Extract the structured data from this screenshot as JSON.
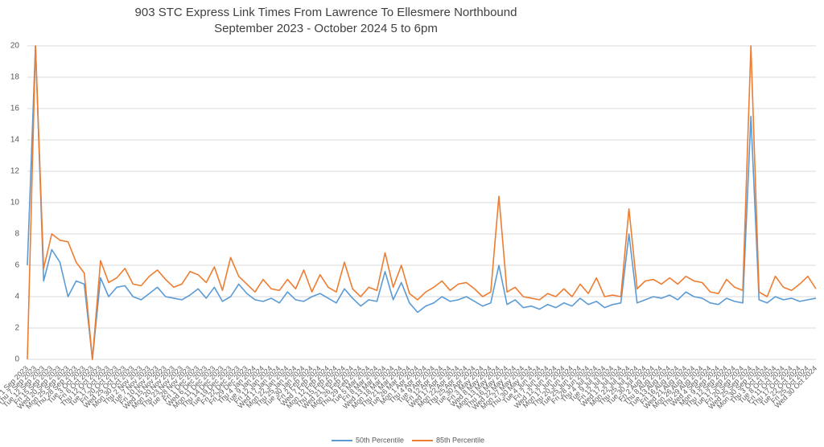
{
  "chart_data": {
    "type": "line",
    "title": "903 STC Express Link Times From Lawrence To Ellesmere Northbound",
    "subtitle": "September 2023 - October 2024 5 to 6pm",
    "categories": [
      "Fri 1 Sep 2023",
      "Thu 7 Sep 2023",
      "Tue 12 Sep 2023",
      "Fri 15 Sep 2023",
      "Wed 20 Sep 2023",
      "Mon 25 Sep 2023",
      "Thu 28 Sep 2023",
      "Tue 3 Oct 2023",
      "Fri 6 Oct 2023",
      "Thu 12 Oct 2023",
      "Tue 17 Oct 2023",
      "Fri 20 Oct 2023",
      "Wed 25 Oct 2023",
      "Mon 30 Oct 2023",
      "Thu 2 Nov 2023",
      "Tue 7 Nov 2023",
      "Fri 10 Nov 2023",
      "Wed 15 Nov 2023",
      "Mon 20 Nov 2023",
      "Thu 23 Nov 2023",
      "Tue 28 Nov 2023",
      "Fri 1 Dec 2023",
      "Wed 6 Dec 2023",
      "Mon 11 Dec 2023",
      "Thu 14 Dec 2023",
      "Tue 19 Dec 2023",
      "Fri 22 Dec 2023",
      "Fri 29 Dec 2023",
      "Thu 4 Jan 2024",
      "Tue 9 Jan 2024",
      "Fri 12 Jan 2024",
      "Wed 17 Jan 2024",
      "Mon 22 Jan 2024",
      "Thu 25 Jan 2024",
      "Tue 30 Jan 2024",
      "Fri 2 Feb 2024",
      "Wed 7 Feb 2024",
      "Mon 12 Feb 2024",
      "Thu 15 Feb 2024",
      "Wed 21 Feb 2024",
      "Mon 26 Feb 2024",
      "Thu 29 Feb 2024",
      "Tue 5 Mar 2024",
      "Fri 8 Mar 2024",
      "Wed 13 Mar 2024",
      "Mon 18 Mar 2024",
      "Thu 21 Mar 2024",
      "Tue 26 Mar 2024",
      "Mon 1 Apr 2024",
      "Thu 4 Apr 2024",
      "Tue 9 Apr 2024",
      "Fri 12 Apr 2024",
      "Wed 17 Apr 2024",
      "Mon 22 Apr 2024",
      "Thu 25 Apr 2024",
      "Tue 30 Apr 2024",
      "Fri 3 May 2024",
      "Wed 8 May 2024",
      "Mon 13 May 2024",
      "Thu 16 May 2024",
      "Wed 22 May 2024",
      "Mon 27 May 2024",
      "Thu 30 May 2024",
      "Tue 4 Jun 2024",
      "Fri 7 Jun 2024",
      "Wed 12 Jun 2024",
      "Mon 17 Jun 2024",
      "Thu 20 Jun 2024",
      "Tue 25 Jun 2024",
      "Fri 28 Jun 2024",
      "Thu 4 Jul 2024",
      "Tue 9 Jul 2024",
      "Fri 12 Jul 2024",
      "Wed 17 Jul 2024",
      "Mon 22 Jul 2024",
      "Thu 25 Jul 2024",
      "Tue 30 Jul 2024",
      "Fri 2 Aug 2024",
      "Thu 8 Aug 2024",
      "Tue 13 Aug 2024",
      "Fri 16 Aug 2024",
      "Wed 21 Aug 2024",
      "Mon 26 Aug 2024",
      "Thu 29 Aug 2024",
      "Wed 4 Sep 2024",
      "Mon 9 Sep 2024",
      "Thu 12 Sep 2024",
      "Tue 17 Sep 2024",
      "Fri 20 Sep 2024",
      "Wed 25 Sep 2024",
      "Mon 30 Sep 2024",
      "Thu 3 Oct 2024",
      "Tue 8 Oct 2024",
      "Fri 11 Oct 2024",
      "Thu 17 Oct 2024",
      "Tue 22 Oct 2024",
      "Fri 25 Oct 2024",
      "Wed 30 Oct 2024"
    ],
    "series": [
      {
        "name": "50th Percentile",
        "color": "#5b9bd5",
        "values": [
          6.0,
          20,
          5.0,
          7.0,
          6.2,
          4.0,
          5.0,
          4.8,
          0,
          5.2,
          4.0,
          4.6,
          4.7,
          4.0,
          3.8,
          4.2,
          4.6,
          4.0,
          3.9,
          3.8,
          4.1,
          4.5,
          3.9,
          4.6,
          3.7,
          4.0,
          4.8,
          4.2,
          3.8,
          3.7,
          3.9,
          3.6,
          4.3,
          3.8,
          3.7,
          4.0,
          4.2,
          3.9,
          3.6,
          4.5,
          3.9,
          3.4,
          3.8,
          3.7,
          5.6,
          3.8,
          4.9,
          3.6,
          3.0,
          3.4,
          3.6,
          4.0,
          3.7,
          3.8,
          4.0,
          3.7,
          3.4,
          3.6,
          6.0,
          3.5,
          3.8,
          3.3,
          3.4,
          3.2,
          3.5,
          3.3,
          3.6,
          3.4,
          3.9,
          3.5,
          3.7,
          3.3,
          3.5,
          3.6,
          8.0,
          3.6,
          3.8,
          4.0,
          3.9,
          4.1,
          3.8,
          4.3,
          4.0,
          3.9,
          3.6,
          3.5,
          3.9,
          3.7,
          3.6,
          15.5,
          3.8,
          3.6,
          4.0,
          3.8,
          3.9,
          3.7,
          3.8,
          3.9
        ]
      },
      {
        "name": "85th Percentile",
        "color": "#ed7d31",
        "values": [
          0,
          20,
          5.8,
          8.0,
          7.6,
          7.5,
          6.2,
          5.5,
          0,
          6.3,
          4.9,
          5.2,
          5.8,
          4.8,
          4.7,
          5.3,
          5.7,
          5.1,
          4.6,
          4.8,
          5.6,
          5.4,
          4.9,
          5.9,
          4.4,
          6.5,
          5.3,
          4.8,
          4.3,
          5.1,
          4.5,
          4.4,
          5.1,
          4.5,
          5.7,
          4.3,
          5.4,
          4.6,
          4.3,
          6.2,
          4.5,
          4.0,
          4.6,
          4.4,
          6.8,
          4.6,
          6.0,
          4.2,
          3.8,
          4.3,
          4.6,
          5.0,
          4.4,
          4.8,
          4.9,
          4.5,
          4.0,
          4.3,
          10.4,
          4.3,
          4.6,
          4.0,
          3.9,
          3.8,
          4.2,
          4.0,
          4.5,
          4.0,
          4.8,
          4.2,
          5.2,
          4.0,
          4.1,
          4.0,
          9.6,
          4.5,
          5.0,
          5.1,
          4.8,
          5.2,
          4.8,
          5.3,
          5.0,
          4.9,
          4.3,
          4.2,
          5.1,
          4.6,
          4.4,
          20,
          4.3,
          4.0,
          5.3,
          4.6,
          4.4,
          4.8,
          5.3,
          4.5
        ]
      }
    ],
    "ylim": [
      0,
      20
    ],
    "yticks": [
      0,
      2,
      4,
      6,
      8,
      10,
      12,
      14,
      16,
      18,
      20
    ],
    "grid": true,
    "legend": "bottom"
  }
}
